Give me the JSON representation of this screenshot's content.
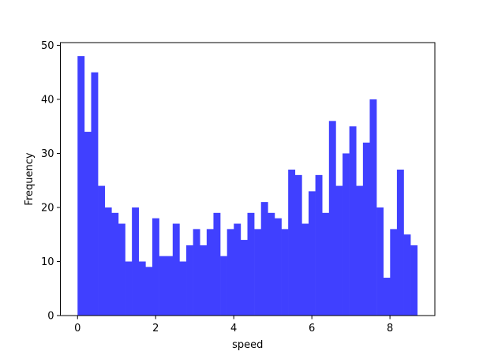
{
  "chart_data": {
    "type": "bar",
    "xlabel": "speed",
    "ylabel": "Frequency",
    "bar_color": "#4040ff",
    "xlim": [
      -0.44,
      9.15
    ],
    "ylim": [
      0,
      50.5
    ],
    "xticks": [
      0,
      2,
      4,
      6,
      8
    ],
    "xtick_labels": [
      "0",
      "2",
      "4",
      "6",
      "8"
    ],
    "yticks": [
      0,
      10,
      20,
      30,
      40,
      50
    ],
    "ytick_labels": [
      "0",
      "10",
      "20",
      "30",
      "40",
      "50"
    ],
    "bin_start": 0.0,
    "bin_width": 0.174,
    "values": [
      48,
      34,
      45,
      24,
      20,
      19,
      17,
      10,
      20,
      10,
      9,
      18,
      11,
      11,
      17,
      10,
      13,
      16,
      13,
      16,
      19,
      11,
      16,
      17,
      14,
      19,
      16,
      21,
      19,
      18,
      16,
      27,
      26,
      17,
      23,
      26,
      19,
      36,
      24,
      30,
      35,
      24,
      32,
      40,
      20,
      7,
      16,
      27,
      15,
      13
    ],
    "grid": false
  }
}
